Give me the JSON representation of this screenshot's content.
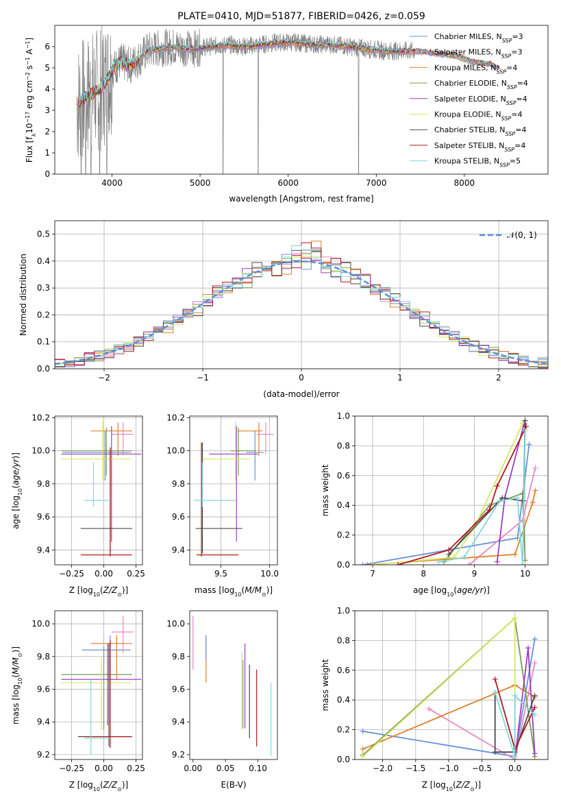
{
  "chart_data": [
    {
      "id": "spectrum",
      "type": "line",
      "title": "PLATE=0410, MJD=51877, FIBERID=0426, z=0.059",
      "xlabel": "wavelength [Angstrom, rest frame]",
      "ylabel": "Flux [f_λ 10^-17 erg cm^-2 s^-1 A^-1]",
      "xlim": [
        3350,
        8950
      ],
      "ylim": [
        0,
        7
      ],
      "xticks": [
        4000,
        5000,
        6000,
        7000,
        8000
      ],
      "yticks": [
        0,
        1,
        2,
        3,
        4,
        5,
        6
      ],
      "grid": false,
      "legend_position": "top-right",
      "data_continuum": {
        "x": [
          3600,
          3700,
          3800,
          3900,
          4000,
          4100,
          4200,
          4300,
          4400,
          4500,
          4700,
          4900,
          5100,
          5300,
          5500,
          5700,
          5900,
          6100,
          6300,
          6500,
          6700,
          6900,
          7100,
          7300,
          7500,
          7700,
          7900,
          8100,
          8300,
          8400
        ],
        "y": [
          3.3,
          3.6,
          3.9,
          4.1,
          4.9,
          5.3,
          5.1,
          5.4,
          5.8,
          5.9,
          6.0,
          5.9,
          6.0,
          6.1,
          6.0,
          6.1,
          6.2,
          6.2,
          6.1,
          6.1,
          6.0,
          5.9,
          5.8,
          5.8,
          5.8,
          5.7,
          5.6,
          5.3,
          5.2,
          5.0
        ]
      },
      "series": [
        {
          "name": "Chabrier MILES, N_SSP=3",
          "color": "#6a8fd8"
        },
        {
          "name": "Salpeter MILES, N_SSP=3",
          "color": "#e887c2"
        },
        {
          "name": "Kroupa MILES, N_SSP=4",
          "color": "#e07f2a"
        },
        {
          "name": "Chabrier ELODIE, N_SSP=4",
          "color": "#7a9a55"
        },
        {
          "name": "Salpeter ELODIE, N_SSP=4",
          "color": "#9a3cc2"
        },
        {
          "name": "Kroupa ELODIE, N_SSP=4",
          "color": "#d6e860"
        },
        {
          "name": "Chabrier STELIB, N_SSP=4",
          "color": "#4a4a4a"
        },
        {
          "name": "Salpeter STELIB, N_SSP=4",
          "color": "#b0181c"
        },
        {
          "name": "Kroupa STELIB, N_SSP=5",
          "color": "#7fd8dc"
        }
      ]
    },
    {
      "id": "residuals",
      "type": "line",
      "xlabel": "(data-model)/error",
      "ylabel": "Normed distribution",
      "xlim": [
        -2.5,
        2.5
      ],
      "ylim": [
        0,
        0.55
      ],
      "xticks": [
        -2,
        -1,
        0,
        1,
        2
      ],
      "yticks": [
        0.0,
        0.1,
        0.2,
        0.3,
        0.4,
        0.5
      ],
      "grid": true,
      "legend_position": "top-right",
      "legend": "𝒩(0, 1)",
      "gaussian": {
        "mean": 0,
        "sigma": 1,
        "color": "#5b8fd8"
      },
      "bin_width": 0.1
    },
    {
      "id": "age-vs-Z",
      "type": "scatter",
      "xlabel": "Z [log10(Z/Z☉)]",
      "ylabel": "age  [log10(age/yr)]",
      "xlim": [
        -0.38,
        0.3
      ],
      "ylim": [
        9.31,
        10.21
      ],
      "xticks": [
        -0.25,
        0.0,
        0.25
      ],
      "yticks": [
        9.4,
        9.6,
        9.8,
        10.0,
        10.2
      ],
      "grid": true,
      "points": [
        {
          "color": "#6a8fd8",
          "x": 0.01,
          "xlo": -0.32,
          "xhi": 0.21,
          "y": 9.99,
          "ylo": 9.82,
          "yhi": 10.12
        },
        {
          "color": "#e887c2",
          "x": 0.15,
          "xlo": 0.06,
          "xhi": 0.23,
          "y": 10.1,
          "ylo": 9.98,
          "yhi": 10.17
        },
        {
          "color": "#e07f2a",
          "x": 0.11,
          "xlo": -0.1,
          "xhi": 0.22,
          "y": 10.12,
          "ylo": 9.97,
          "yhi": 10.17
        },
        {
          "color": "#7a9a55",
          "x": 0.02,
          "xlo": -0.33,
          "xhi": 0.22,
          "y": 10.0,
          "ylo": 9.85,
          "yhi": 10.14
        },
        {
          "color": "#9a3cc2",
          "x": 0.06,
          "xlo": -0.33,
          "xhi": 0.29,
          "y": 9.98,
          "ylo": 9.45,
          "yhi": 10.15
        },
        {
          "color": "#d6e860",
          "x": -0.01,
          "xlo": -0.33,
          "xhi": 0.21,
          "y": 9.95,
          "ylo": 9.82,
          "yhi": 10.18
        },
        {
          "color": "#4a4a4a",
          "x": 0.05,
          "xlo": -0.18,
          "xhi": 0.22,
          "y": 9.53,
          "ylo": 9.38,
          "yhi": 10.0
        },
        {
          "color": "#b0181c",
          "x": 0.05,
          "xlo": -0.18,
          "xhi": 0.22,
          "y": 9.37,
          "ylo": 9.36,
          "yhi": 10.02
        },
        {
          "color": "#7fd8dc",
          "x": -0.08,
          "xlo": -0.15,
          "xhi": 0.05,
          "y": 9.7,
          "ylo": 9.66,
          "yhi": 9.93
        }
      ]
    },
    {
      "id": "age-vs-mass",
      "type": "scatter",
      "xlabel": "mass [log10(M/M☉)]",
      "xlim": [
        9.18,
        10.08
      ],
      "ylim": [
        9.31,
        10.21
      ],
      "xticks": [
        9.5,
        10.0
      ],
      "yticks": [
        9.4,
        9.6,
        9.8,
        10.0,
        10.2
      ],
      "grid": true,
      "points": [
        {
          "color": "#6a8fd8",
          "x": 9.85,
          "xlo": 9.76,
          "xhi": 9.94,
          "y": 9.99,
          "ylo": 9.82,
          "yhi": 10.12
        },
        {
          "color": "#e887c2",
          "x": 9.96,
          "xlo": 9.87,
          "xhi": 10.04,
          "y": 10.1,
          "ylo": 9.98,
          "yhi": 10.17
        },
        {
          "color": "#e07f2a",
          "x": 9.89,
          "xlo": 9.67,
          "xhi": 9.93,
          "y": 10.12,
          "ylo": 9.97,
          "yhi": 10.17
        },
        {
          "color": "#7a9a55",
          "x": 9.68,
          "xlo": 9.6,
          "xhi": 9.86,
          "y": 10.0,
          "ylo": 9.85,
          "yhi": 10.14
        },
        {
          "color": "#9a3cc2",
          "x": 9.66,
          "xlo": 9.38,
          "xhi": 9.88,
          "y": 9.98,
          "ylo": 9.45,
          "yhi": 10.15
        },
        {
          "color": "#d6e860",
          "x": 9.65,
          "xlo": 9.3,
          "xhi": 9.8,
          "y": 9.95,
          "ylo": 9.82,
          "yhi": 10.18
        },
        {
          "color": "#4a4a4a",
          "x": 9.31,
          "xlo": 9.24,
          "xhi": 9.72,
          "y": 9.53,
          "ylo": 9.38,
          "yhi": 10.05
        },
        {
          "color": "#b0181c",
          "x": 9.3,
          "xlo": 9.25,
          "xhi": 9.68,
          "y": 9.37,
          "ylo": 9.36,
          "yhi": 10.05
        },
        {
          "color": "#7fd8dc",
          "x": 9.31,
          "xlo": 9.22,
          "xhi": 9.65,
          "y": 9.7,
          "ylo": 9.66,
          "yhi": 9.93
        }
      ]
    },
    {
      "id": "weight-vs-age",
      "type": "line",
      "xlabel": "age  [log10(age/yr)]",
      "ylabel": "mass weight",
      "xlim": [
        6.65,
        10.45
      ],
      "ylim": [
        0,
        1.0
      ],
      "xticks": [
        7,
        8,
        9,
        10
      ],
      "yticks": [
        0.0,
        0.2,
        0.4,
        0.6,
        0.8,
        1.0
      ],
      "grid": true,
      "series": [
        {
          "color": "#6a8fd8",
          "points": [
            [
              6.8,
              0.0
            ],
            [
              9.85,
              0.18
            ],
            [
              10.08,
              0.81
            ]
          ]
        },
        {
          "color": "#e887c2",
          "points": [
            [
              8.9,
              0.0
            ],
            [
              9.95,
              0.3
            ],
            [
              10.2,
              0.65
            ]
          ]
        },
        {
          "color": "#e07f2a",
          "points": [
            [
              6.9,
              0.0
            ],
            [
              9.8,
              0.07
            ],
            [
              10.15,
              0.42
            ],
            [
              10.2,
              0.5
            ]
          ]
        },
        {
          "color": "#7a9a55",
          "points": [
            [
              8.4,
              0.02
            ],
            [
              9.3,
              0.4
            ],
            [
              9.95,
              0.48
            ],
            [
              10.0,
              0.03
            ]
          ]
        },
        {
          "color": "#9a3cc2",
          "points": [
            [
              9.45,
              0.02
            ],
            [
              9.6,
              0.45
            ],
            [
              9.98,
              0.95
            ]
          ]
        },
        {
          "color": "#d6e860",
          "points": [
            [
              7.0,
              0.0
            ],
            [
              8.6,
              0.05
            ],
            [
              9.0,
              0.25
            ],
            [
              9.95,
              0.95
            ]
          ]
        },
        {
          "color": "#4a4a4a",
          "points": [
            [
              8.5,
              0.07
            ],
            [
              9.55,
              0.45
            ],
            [
              9.97,
              0.43
            ],
            [
              10.0,
              0.97
            ]
          ]
        },
        {
          "color": "#b0181c",
          "points": [
            [
              7.5,
              0.0
            ],
            [
              8.5,
              0.1
            ],
            [
              9.3,
              0.37
            ],
            [
              9.45,
              0.53
            ],
            [
              10.02,
              0.93
            ]
          ]
        },
        {
          "color": "#7fd8dc",
          "points": [
            [
              8.3,
              0.02
            ],
            [
              8.8,
              0.05
            ],
            [
              9.5,
              0.43
            ],
            [
              9.85,
              0.45
            ],
            [
              9.95,
              0.0
            ],
            [
              10.0,
              0.9
            ]
          ]
        }
      ]
    },
    {
      "id": "mass-vs-Z",
      "type": "scatter",
      "xlabel": "Z [log10(Z/Z☉)]",
      "ylabel": "mass [log10(M/M☉)]",
      "xlim": [
        -0.38,
        0.3
      ],
      "ylim": [
        9.17,
        10.08
      ],
      "xticks": [
        -0.25,
        0.0,
        0.25
      ],
      "yticks": [
        9.2,
        9.4,
        9.6,
        9.8,
        10.0
      ],
      "grid": true,
      "points": [
        {
          "color": "#6a8fd8",
          "x": 0.05,
          "xlo": -0.17,
          "xhi": 0.21,
          "y": 9.84,
          "ylo": 9.67,
          "yhi": 9.93
        },
        {
          "color": "#e887c2",
          "x": 0.15,
          "xlo": 0.06,
          "xhi": 0.23,
          "y": 9.95,
          "ylo": 9.82,
          "yhi": 10.05
        },
        {
          "color": "#e07f2a",
          "x": 0.1,
          "xlo": -0.1,
          "xhi": 0.22,
          "y": 9.88,
          "ylo": 9.66,
          "yhi": 9.93
        },
        {
          "color": "#7a9a55",
          "x": 0.0,
          "xlo": -0.33,
          "xhi": 0.22,
          "y": 9.69,
          "ylo": 9.35,
          "yhi": 9.86
        },
        {
          "color": "#9a3cc2",
          "x": 0.03,
          "xlo": -0.33,
          "xhi": 0.29,
          "y": 9.66,
          "ylo": 9.38,
          "yhi": 9.88
        },
        {
          "color": "#d6e860",
          "x": -0.02,
          "xlo": -0.33,
          "xhi": 0.21,
          "y": 9.64,
          "ylo": 9.35,
          "yhi": 9.8
        },
        {
          "color": "#4a4a4a",
          "x": 0.04,
          "xlo": -0.2,
          "xhi": 0.22,
          "y": 9.31,
          "ylo": 9.25,
          "yhi": 9.88
        },
        {
          "color": "#b0181c",
          "x": 0.05,
          "xlo": -0.15,
          "xhi": 0.21,
          "y": 9.31,
          "ylo": 9.24,
          "yhi": 9.9
        },
        {
          "color": "#7fd8dc",
          "x": -0.1,
          "xlo": -0.15,
          "xhi": 0.05,
          "y": 9.3,
          "ylo": 9.2,
          "yhi": 9.66
        }
      ]
    },
    {
      "id": "mass-vs-EBV",
      "type": "scatter",
      "xlabel": "E(B-V)",
      "xlim": [
        -0.005,
        0.13
      ],
      "ylim": [
        9.17,
        10.08
      ],
      "xticks": [
        0.0,
        0.05,
        0.1
      ],
      "yticks": [
        9.2,
        9.4,
        9.6,
        9.8,
        10.0
      ],
      "grid": false,
      "points": [
        {
          "color": "#e887c2",
          "x": 0.0,
          "ylo": 9.72,
          "yhi": 10.05
        },
        {
          "color": "#e07f2a",
          "x": 0.02,
          "ylo": 9.64,
          "yhi": 9.93
        },
        {
          "color": "#6a8fd8",
          "x": 0.02,
          "ylo": 9.78,
          "yhi": 9.93
        },
        {
          "color": "#d6e860",
          "x": 0.075,
          "ylo": 9.35,
          "yhi": 9.83
        },
        {
          "color": "#7a9a55",
          "x": 0.077,
          "ylo": 9.36,
          "yhi": 9.78
        },
        {
          "color": "#9a3cc2",
          "x": 0.08,
          "ylo": 9.36,
          "yhi": 9.88
        },
        {
          "color": "#4a4a4a",
          "x": 0.087,
          "ylo": 9.3,
          "yhi": 9.75
        },
        {
          "color": "#b0181c",
          "x": 0.098,
          "ylo": 9.25,
          "yhi": 9.72
        },
        {
          "color": "#7fd8dc",
          "x": 0.12,
          "ylo": 9.19,
          "yhi": 9.64
        }
      ]
    },
    {
      "id": "weight-vs-Z",
      "type": "line",
      "xlabel": "Z [log10(Z/Z☉)]",
      "ylabel": "mass weight",
      "xlim": [
        -2.42,
        0.5
      ],
      "ylim": [
        0,
        1.0
      ],
      "xticks": [
        -2.0,
        -1.5,
        -1.0,
        -0.5,
        0.0
      ],
      "yticks": [
        0.0,
        0.2,
        0.4,
        0.6,
        0.8,
        1.0
      ],
      "grid": true,
      "series": [
        {
          "color": "#6a8fd8",
          "points": [
            [
              -2.3,
              0.19
            ],
            [
              0.0,
              0.02
            ],
            [
              0.3,
              0.81
            ]
          ]
        },
        {
          "color": "#e887c2",
          "points": [
            [
              -1.3,
              0.34
            ],
            [
              0.0,
              0.0
            ],
            [
              0.3,
              0.65
            ]
          ]
        },
        {
          "color": "#e07f2a",
          "points": [
            [
              -2.3,
              0.07
            ],
            [
              0.0,
              0.5
            ],
            [
              0.3,
              0.42
            ]
          ]
        },
        {
          "color": "#7a9a55",
          "points": [
            [
              -2.3,
              0.03
            ],
            [
              0.0,
              0.95
            ],
            [
              0.3,
              0.02
            ]
          ]
        },
        {
          "color": "#9a3cc2",
          "points": [
            [
              0.0,
              0.0
            ],
            [
              0.2,
              0.75
            ],
            [
              0.3,
              0.04
            ]
          ]
        },
        {
          "color": "#d6e860",
          "points": [
            [
              -2.3,
              0.02
            ],
            [
              0.0,
              0.95
            ],
            [
              0.0,
              0.0
            ]
          ]
        },
        {
          "color": "#4a4a4a",
          "points": [
            [
              -0.3,
              0.45
            ],
            [
              -0.3,
              0.05
            ],
            [
              0.0,
              0.05
            ],
            [
              0.3,
              0.43
            ]
          ]
        },
        {
          "color": "#b0181c",
          "points": [
            [
              -0.3,
              0.54
            ],
            [
              0.0,
              0.07
            ],
            [
              0.3,
              0.35
            ]
          ]
        },
        {
          "color": "#7fd8dc",
          "points": [
            [
              -0.3,
              0.45
            ],
            [
              0.0,
              0.02
            ],
            [
              0.0,
              0.43
            ],
            [
              0.3,
              0.3
            ]
          ]
        }
      ]
    }
  ]
}
